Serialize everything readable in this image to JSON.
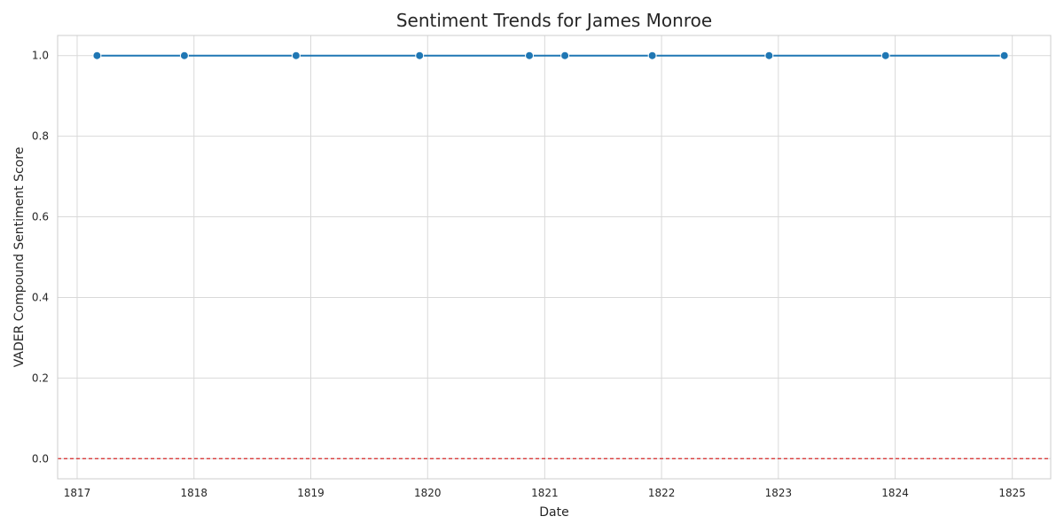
{
  "chart_data": {
    "type": "line",
    "title": "Sentiment Trends for James Monroe",
    "xlabel": "Date",
    "ylabel": "VADER Compound Sentiment Score",
    "x_axis_type": "date",
    "xlim": [
      "1816-11-01",
      "1825-05-01"
    ],
    "ylim": [
      -0.05,
      1.05
    ],
    "x_ticks": [
      "1817",
      "1818",
      "1819",
      "1820",
      "1821",
      "1822",
      "1823",
      "1824",
      "1825"
    ],
    "y_ticks": [
      "0.0",
      "0.2",
      "0.4",
      "0.6",
      "0.8",
      "1.0"
    ],
    "grid": true,
    "legend": "none",
    "series": [
      {
        "color": "#1f77b4",
        "x": [
          "1817-03-04",
          "1817-12-02",
          "1818-11-16",
          "1819-12-07",
          "1820-11-14",
          "1821-03-05",
          "1821-12-03",
          "1822-12-03",
          "1823-12-02",
          "1824-12-07"
        ],
        "y": [
          1.0,
          1.0,
          1.0,
          1.0,
          1.0,
          1.0,
          1.0,
          1.0,
          1.0,
          1.0
        ]
      }
    ],
    "reference_lines": [
      {
        "y": 0.0,
        "color": "#d62728",
        "style": "dashed"
      }
    ],
    "style": {
      "background": "#ffffff",
      "grid_color": "#d9d9d9",
      "spine_color": "#cccccc"
    }
  }
}
